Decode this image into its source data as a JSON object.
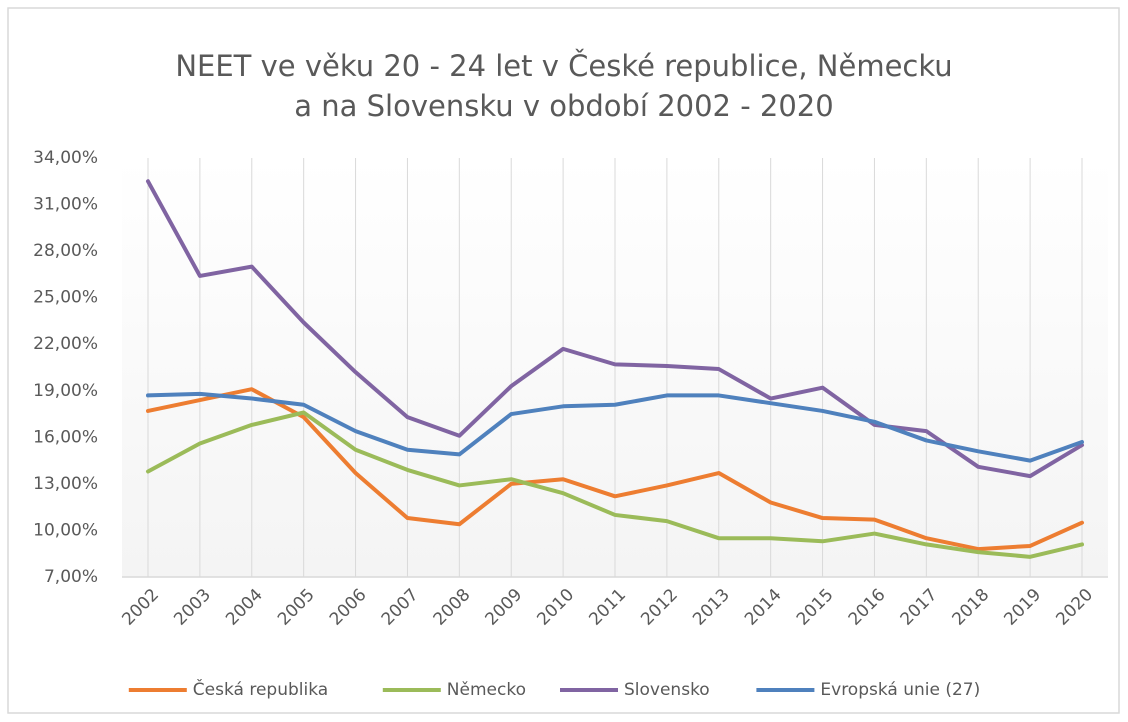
{
  "chart_data": {
    "type": "line",
    "title": [
      "NEET ve věku 20 - 24 let v České republice, Německu",
      "a na Slovensku v období 2002 - 2020"
    ],
    "categories": [
      "2002",
      "2003",
      "2004",
      "2005",
      "2006",
      "2007",
      "2008",
      "2009",
      "2010",
      "2011",
      "2012",
      "2013",
      "2014",
      "2015",
      "2016",
      "2017",
      "2018",
      "2019",
      "2020"
    ],
    "series": [
      {
        "name": "Česká republika",
        "color": "#ED7D31",
        "values": [
          17.7,
          18.4,
          19.1,
          17.3,
          13.7,
          10.8,
          10.4,
          13.0,
          13.3,
          12.2,
          12.9,
          13.7,
          11.8,
          10.8,
          10.7,
          9.5,
          8.8,
          9.0,
          10.5
        ]
      },
      {
        "name": "Německo",
        "color": "#9BBB59",
        "values": [
          13.8,
          15.6,
          16.8,
          17.6,
          15.2,
          13.9,
          12.9,
          13.3,
          12.4,
          11.0,
          10.6,
          9.5,
          9.5,
          9.3,
          9.8,
          9.1,
          8.6,
          8.3,
          9.1
        ]
      },
      {
        "name": "Slovensko",
        "color": "#8064A2",
        "values": [
          32.5,
          26.4,
          27.0,
          23.4,
          20.2,
          17.3,
          16.1,
          19.3,
          21.7,
          20.7,
          20.6,
          20.4,
          18.5,
          19.2,
          16.8,
          16.4,
          14.1,
          13.5,
          15.5
        ]
      },
      {
        "name": "Evropská unie (27)",
        "color": "#4F81BD",
        "values": [
          18.7,
          18.8,
          18.5,
          18.1,
          16.4,
          15.2,
          14.9,
          17.5,
          18.0,
          18.1,
          18.7,
          18.7,
          18.2,
          17.7,
          17.0,
          15.8,
          15.1,
          14.5,
          15.7
        ]
      }
    ],
    "ylim": [
      7,
      34
    ],
    "yticks": [
      {
        "value": 7,
        "label": "7,00%"
      },
      {
        "value": 10,
        "label": "10,00%"
      },
      {
        "value": 13,
        "label": "13,00%"
      },
      {
        "value": 16,
        "label": "16,00%"
      },
      {
        "value": 19,
        "label": "19,00%"
      },
      {
        "value": 22,
        "label": "22,00%"
      },
      {
        "value": 25,
        "label": "25,00%"
      },
      {
        "value": 28,
        "label": "28,00%"
      },
      {
        "value": 31,
        "label": "31,00%"
      },
      {
        "value": 34,
        "label": "34,00%"
      }
    ],
    "grid": "vertical",
    "legend": "bottom"
  }
}
